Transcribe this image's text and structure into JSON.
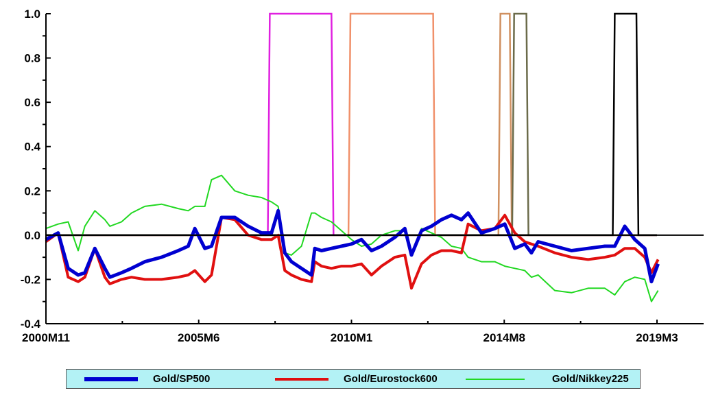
{
  "chart_data": {
    "type": "line",
    "title": "",
    "xlabel": "",
    "ylabel": "",
    "x_start": "2000M11",
    "x_end": "2019M3",
    "x_ticks": [
      "2000M11",
      "2005M6",
      "2010M1",
      "2014M8",
      "2019M3"
    ],
    "y_ticks": [
      "1.0",
      "0.8",
      "0.6",
      "0.4",
      "0.2",
      "0.0",
      "-0.2",
      "-0.4"
    ],
    "ylim": [
      -0.4,
      1.0
    ],
    "zero_line": true,
    "grid": false,
    "legend_position": "bottom",
    "series": [
      {
        "name": "Gold/SP500",
        "color": "#0000d0",
        "x": [
          2000.83,
          2001.2,
          2001.5,
          2001.8,
          2002.0,
          2002.3,
          2002.6,
          2002.75,
          2003.1,
          2003.4,
          2003.8,
          2004.3,
          2004.8,
          2005.1,
          2005.3,
          2005.6,
          2005.8,
          2006.1,
          2006.5,
          2006.9,
          2007.3,
          2007.6,
          2007.8,
          2008.0,
          2008.2,
          2008.5,
          2008.8,
          2008.9,
          2009.1,
          2009.4,
          2009.7,
          2010.0,
          2010.3,
          2010.6,
          2010.9,
          2011.3,
          2011.6,
          2011.8,
          2012.1,
          2012.4,
          2012.7,
          2013.0,
          2013.3,
          2013.5,
          2013.9,
          2014.3,
          2014.6,
          2014.9,
          2015.2,
          2015.4,
          2015.6,
          2016.1,
          2016.6,
          2017.1,
          2017.6,
          2017.9,
          2018.2,
          2018.5,
          2018.8,
          2019.0,
          2019.2
        ],
        "values": [
          -0.02,
          0.01,
          -0.15,
          -0.18,
          -0.17,
          -0.06,
          -0.15,
          -0.19,
          -0.17,
          -0.15,
          -0.12,
          -0.1,
          -0.07,
          -0.05,
          0.03,
          -0.06,
          -0.05,
          0.08,
          0.08,
          0.04,
          0.01,
          0.01,
          0.11,
          -0.08,
          -0.12,
          -0.15,
          -0.18,
          -0.06,
          -0.07,
          -0.06,
          -0.05,
          -0.04,
          -0.02,
          -0.07,
          -0.05,
          -0.01,
          0.03,
          -0.09,
          0.02,
          0.04,
          0.07,
          0.09,
          0.07,
          0.1,
          0.01,
          0.03,
          0.05,
          -0.06,
          -0.04,
          -0.08,
          -0.03,
          -0.05,
          -0.07,
          -0.06,
          -0.05,
          -0.05,
          0.04,
          -0.02,
          -0.06,
          -0.21,
          -0.13
        ]
      },
      {
        "name": "Gold/Eurostock600",
        "color": "#e01010",
        "x": [
          2000.83,
          2001.2,
          2001.5,
          2001.8,
          2002.0,
          2002.3,
          2002.6,
          2002.75,
          2003.1,
          2003.4,
          2003.8,
          2004.3,
          2004.8,
          2005.1,
          2005.3,
          2005.6,
          2005.8,
          2006.1,
          2006.5,
          2006.9,
          2007.3,
          2007.6,
          2007.8,
          2008.0,
          2008.2,
          2008.5,
          2008.8,
          2008.9,
          2009.1,
          2009.4,
          2009.7,
          2010.0,
          2010.3,
          2010.6,
          2010.9,
          2011.3,
          2011.6,
          2011.8,
          2012.1,
          2012.4,
          2012.7,
          2013.0,
          2013.3,
          2013.5,
          2013.9,
          2014.3,
          2014.6,
          2014.9,
          2015.2,
          2015.4,
          2015.6,
          2016.1,
          2016.6,
          2017.1,
          2017.6,
          2017.9,
          2018.2,
          2018.5,
          2018.8,
          2019.0,
          2019.2
        ],
        "values": [
          -0.03,
          0.01,
          -0.19,
          -0.21,
          -0.19,
          -0.06,
          -0.19,
          -0.22,
          -0.2,
          -0.19,
          -0.2,
          -0.2,
          -0.19,
          -0.18,
          -0.16,
          -0.21,
          -0.18,
          0.08,
          0.07,
          0.0,
          -0.02,
          -0.02,
          0.0,
          -0.16,
          -0.18,
          -0.2,
          -0.21,
          -0.12,
          -0.14,
          -0.15,
          -0.14,
          -0.14,
          -0.13,
          -0.18,
          -0.14,
          -0.1,
          -0.09,
          -0.24,
          -0.13,
          -0.09,
          -0.07,
          -0.07,
          -0.08,
          0.05,
          0.02,
          0.03,
          0.09,
          0.01,
          -0.03,
          -0.04,
          -0.05,
          -0.08,
          -0.1,
          -0.11,
          -0.1,
          -0.09,
          -0.06,
          -0.06,
          -0.1,
          -0.17,
          -0.11
        ]
      },
      {
        "name": "Gold/Nikkey225",
        "color": "#22d822",
        "x": [
          2000.83,
          2001.2,
          2001.5,
          2001.8,
          2002.0,
          2002.3,
          2002.6,
          2002.75,
          2003.1,
          2003.4,
          2003.8,
          2004.3,
          2004.8,
          2005.1,
          2005.3,
          2005.6,
          2005.8,
          2006.1,
          2006.5,
          2006.9,
          2007.3,
          2007.6,
          2007.8,
          2008.0,
          2008.2,
          2008.5,
          2008.8,
          2008.9,
          2009.1,
          2009.4,
          2009.7,
          2010.0,
          2010.3,
          2010.6,
          2010.9,
          2011.3,
          2011.6,
          2011.8,
          2012.1,
          2012.4,
          2012.7,
          2013.0,
          2013.3,
          2013.5,
          2013.9,
          2014.3,
          2014.6,
          2014.9,
          2015.2,
          2015.4,
          2015.6,
          2016.1,
          2016.6,
          2017.1,
          2017.6,
          2017.9,
          2018.2,
          2018.5,
          2018.8,
          2019.0,
          2019.2
        ],
        "values": [
          0.03,
          0.05,
          0.06,
          -0.07,
          0.04,
          0.11,
          0.07,
          0.04,
          0.06,
          0.1,
          0.13,
          0.14,
          0.12,
          0.11,
          0.13,
          0.13,
          0.25,
          0.27,
          0.2,
          0.18,
          0.17,
          0.15,
          0.13,
          -0.08,
          -0.09,
          -0.05,
          0.1,
          0.1,
          0.08,
          0.06,
          0.02,
          -0.02,
          -0.05,
          -0.04,
          0.0,
          0.02,
          0.02,
          -0.09,
          0.03,
          0.01,
          -0.01,
          -0.05,
          -0.06,
          -0.1,
          -0.12,
          -0.12,
          -0.14,
          -0.15,
          -0.16,
          -0.19,
          -0.18,
          -0.25,
          -0.26,
          -0.24,
          -0.24,
          -0.27,
          -0.21,
          -0.19,
          -0.2,
          -0.3,
          -0.25
        ]
      }
    ],
    "regime_indicators": [
      {
        "color": "#e020e0",
        "start": 2007.55,
        "end": 2009.4
      },
      {
        "color": "#f0906a",
        "start": 2009.97,
        "end": 2012.45
      },
      {
        "color": "#d09060",
        "start": 2014.47,
        "end": 2014.75
      },
      {
        "color": "#6b6b4a",
        "start": 2014.88,
        "end": 2015.25
      },
      {
        "color": "#000000",
        "start": 2017.9,
        "end": 2018.55
      }
    ]
  },
  "legend": {
    "items": [
      {
        "name": "Gold/SP500",
        "color": "#0000d0"
      },
      {
        "name": "Gold/Eurostock600",
        "color": "#e01010"
      },
      {
        "name": "Gold/Nikkey225",
        "color": "#22d822"
      }
    ]
  }
}
